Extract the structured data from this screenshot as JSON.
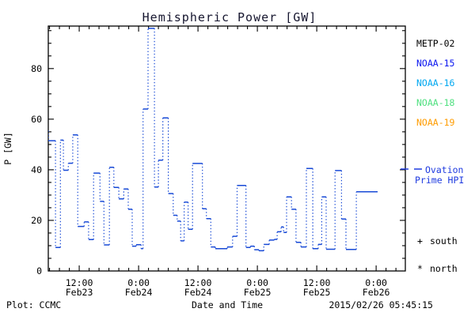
{
  "title": "Hemispheric Power [GW]",
  "footer": {
    "plot_credit": "Plot: CCMC",
    "xlabel": "Date and Time",
    "timestamp": "2015/02/26 05:45:15"
  },
  "legend": {
    "satellites": [
      {
        "label": "METP-02",
        "color": "#000000"
      },
      {
        "label": "NOAA-15",
        "color": "#0a16f0"
      },
      {
        "label": "NOAA-16",
        "color": "#00a8f0"
      },
      {
        "label": "NOAA-18",
        "color": "#50e080"
      },
      {
        "label": "NOAA-19",
        "color": "#ff9c00"
      }
    ],
    "line_entry": {
      "label_line1": "Ovation",
      "label_line2": "Prime HPI",
      "color": "#1f3be0"
    },
    "markers": [
      {
        "symbol": "+",
        "label": "south"
      },
      {
        "symbol": "*",
        "label": "north"
      }
    ]
  },
  "chart_data": {
    "type": "line",
    "style": "step-histogram",
    "title": "Hemispheric Power [GW]",
    "xlabel": "Date and Time",
    "ylabel": "P [GW]",
    "line_color": "#1749d6",
    "ylim": [
      0,
      96.8
    ],
    "yticks": [
      0,
      20,
      40,
      60,
      80
    ],
    "y_minor_step": 5,
    "xlim_hours_from_feb23_0000": [
      5.75,
      77.9
    ],
    "x_minor_step_hours": 2,
    "xticks": [
      {
        "t": 12,
        "time": "12:00",
        "date": "Feb23"
      },
      {
        "t": 24,
        "time": "0:00",
        "date": "Feb24"
      },
      {
        "t": 36,
        "time": "12:00",
        "date": "Feb24"
      },
      {
        "t": 48,
        "time": "0:00",
        "date": "Feb25"
      },
      {
        "t": 60,
        "time": "12:00",
        "date": "Feb25"
      },
      {
        "t": 72,
        "time": "0:00",
        "date": "Feb26"
      }
    ],
    "grid": false,
    "legend_position": "right-outside",
    "series": [
      {
        "name": "Ovation Prime HPI",
        "units": "GW",
        "end_t": 72.3,
        "points": [
          [
            5.6,
            55.5
          ],
          [
            5.76,
            51.5
          ],
          [
            7.2,
            9.3
          ],
          [
            8.2,
            51.7
          ],
          [
            8.8,
            39.8
          ],
          [
            9.8,
            42.6
          ],
          [
            10.7,
            53.8
          ],
          [
            11.7,
            17.6
          ],
          [
            13.0,
            19.4
          ],
          [
            13.9,
            12.4
          ],
          [
            14.9,
            38.7
          ],
          [
            16.2,
            27.5
          ],
          [
            17.0,
            10.3
          ],
          [
            18.1,
            41.0
          ],
          [
            19.0,
            33.0
          ],
          [
            20.0,
            28.5
          ],
          [
            21.0,
            32.4
          ],
          [
            21.9,
            24.4
          ],
          [
            22.7,
            9.8
          ],
          [
            23.5,
            10.4
          ],
          [
            24.5,
            8.8
          ],
          [
            24.9,
            64.0
          ],
          [
            25.9,
            95.9
          ],
          [
            27.2,
            33.2
          ],
          [
            28.0,
            43.8
          ],
          [
            28.9,
            60.5
          ],
          [
            30.0,
            30.6
          ],
          [
            31.0,
            22.0
          ],
          [
            31.8,
            19.7
          ],
          [
            32.5,
            11.9
          ],
          [
            33.2,
            27.2
          ],
          [
            34.0,
            16.5
          ],
          [
            34.9,
            42.5
          ],
          [
            36.0,
            42.5
          ],
          [
            36.9,
            24.6
          ],
          [
            37.7,
            20.7
          ],
          [
            38.6,
            9.5
          ],
          [
            39.5,
            8.8
          ],
          [
            40.8,
            8.8
          ],
          [
            41.9,
            9.5
          ],
          [
            43.0,
            13.7
          ],
          [
            43.9,
            33.8
          ],
          [
            44.9,
            33.8
          ],
          [
            45.7,
            9.3
          ],
          [
            46.6,
            9.8
          ],
          [
            47.4,
            8.4
          ],
          [
            48.3,
            8.0
          ],
          [
            49.3,
            10.5
          ],
          [
            50.4,
            12.2
          ],
          [
            51.4,
            12.5
          ],
          [
            52.0,
            15.5
          ],
          [
            52.8,
            17.4
          ],
          [
            53.3,
            15.2
          ],
          [
            53.9,
            29.3
          ],
          [
            54.9,
            24.4
          ],
          [
            55.8,
            11.3
          ],
          [
            56.8,
            9.5
          ],
          [
            57.9,
            40.5
          ],
          [
            59.2,
            8.8
          ],
          [
            60.3,
            10.5
          ],
          [
            61.0,
            29.3
          ],
          [
            61.9,
            8.6
          ],
          [
            63.7,
            39.7
          ],
          [
            65.0,
            20.5
          ],
          [
            65.9,
            8.5
          ],
          [
            68.0,
            31.3
          ]
        ]
      }
    ]
  }
}
